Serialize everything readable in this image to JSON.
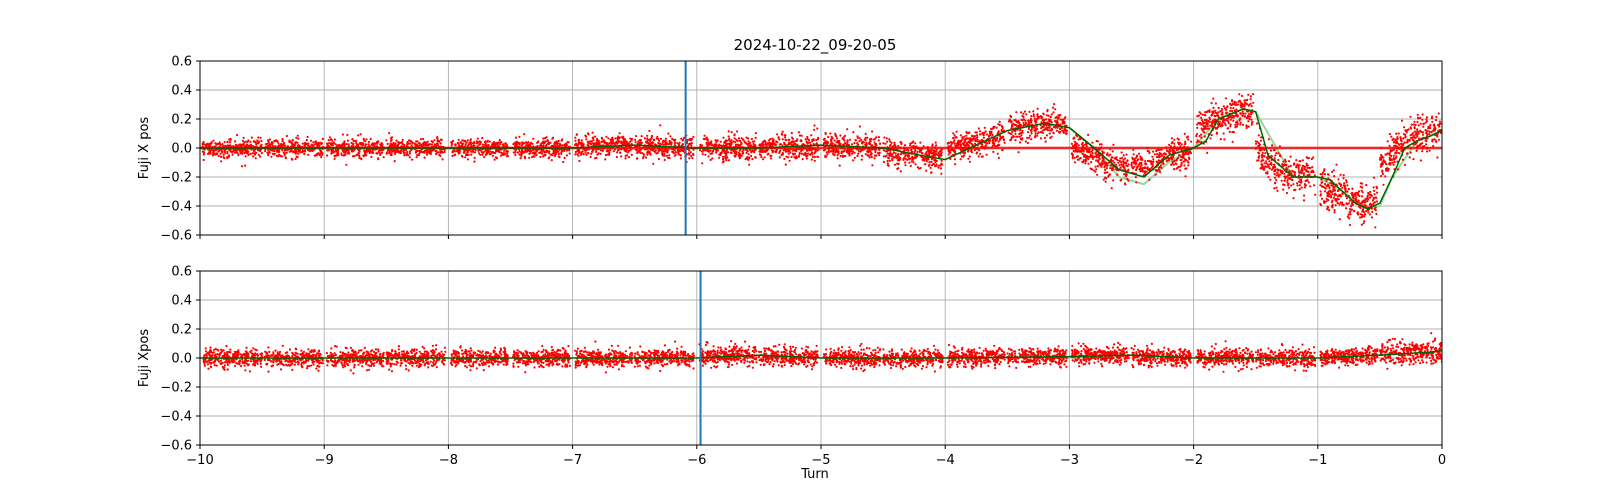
{
  "figure": {
    "title": "2024-10-22_09-20-05",
    "xlabel": "Turn"
  },
  "chart_data": [
    {
      "type": "scatter",
      "panel": "top",
      "title": "2024-10-22_09-20-05",
      "ylabel": "Fuji X pos",
      "xlabel": "",
      "xlim": [
        -10,
        0
      ],
      "ylim": [
        -0.6,
        0.6
      ],
      "xticks": [
        -10,
        -9,
        -8,
        -7,
        -6,
        -5,
        -4,
        -3,
        -2,
        -1,
        0
      ],
      "xtick_labels_shown": false,
      "yticks": [
        -0.6,
        -0.4,
        -0.2,
        0.0,
        0.2,
        0.4,
        0.6
      ],
      "grid": true,
      "colors": {
        "points": "#ff0000",
        "trend": "#006400",
        "envelope": "#98d898",
        "marker": "#1f77b4",
        "reference": "#ff0000"
      },
      "vertical_marker_x": -6.09,
      "reference_lines_y": [
        -0.005,
        0.005
      ],
      "series": [
        {
          "kind": "scatter",
          "color": "#ff0000",
          "segments": [
            {
              "x0": -9.98,
              "x1": -9.5,
              "n": 300,
              "center": 0.0,
              "noise": 0.03
            },
            {
              "x0": -9.48,
              "x1": -9.01,
              "n": 300,
              "center": 0.0,
              "noise": 0.03
            },
            {
              "x0": -8.98,
              "x1": -8.52,
              "n": 300,
              "center": 0.0,
              "noise": 0.03
            },
            {
              "x0": -8.5,
              "x1": -8.02,
              "n": 300,
              "center": 0.0,
              "noise": 0.03
            },
            {
              "x0": -7.98,
              "x1": -7.52,
              "n": 300,
              "center": 0.0,
              "noise": 0.03
            },
            {
              "x0": -7.48,
              "x1": -7.02,
              "n": 300,
              "center": 0.0,
              "noise": 0.03
            },
            {
              "x0": -6.98,
              "x1": -6.52,
              "n": 300,
              "center": 0.02,
              "noise": 0.035
            },
            {
              "x0": -6.5,
              "x1": -6.02,
              "n": 300,
              "center": 0.0,
              "noise": 0.04
            },
            {
              "x0": -5.98,
              "x1": -5.52,
              "n": 300,
              "center": 0.0,
              "noise": 0.04
            },
            {
              "x0": -5.5,
              "x1": -5.02,
              "n": 300,
              "center": 0.0,
              "noise": 0.045
            },
            {
              "x0": -4.98,
              "x1": -4.52,
              "n": 300,
              "center": 0.0,
              "noise": 0.04
            },
            {
              "x0": -4.5,
              "x1": -4.02,
              "n": 300,
              "center": -0.05,
              "noise": 0.045
            },
            {
              "x0": -3.98,
              "x1": -3.52,
              "n": 300,
              "center": 0.05,
              "noise": 0.045
            },
            {
              "x0": -3.5,
              "x1": -3.02,
              "n": 300,
              "center": 0.15,
              "noise": 0.05
            },
            {
              "x0": -2.98,
              "x1": -2.52,
              "n": 300,
              "center": -0.12,
              "noise": 0.05
            },
            {
              "x0": -2.5,
              "x1": -2.02,
              "n": 300,
              "center": -0.05,
              "noise": 0.05
            },
            {
              "x0": -1.98,
              "x1": -1.52,
              "n": 300,
              "center": 0.22,
              "noise": 0.06
            },
            {
              "x0": -1.5,
              "x1": -1.02,
              "n": 300,
              "center": -0.18,
              "noise": 0.06
            },
            {
              "x0": -0.98,
              "x1": -0.52,
              "n": 300,
              "center": -0.35,
              "noise": 0.07
            },
            {
              "x0": -0.5,
              "x1": 0.0,
              "n": 300,
              "center": 0.12,
              "noise": 0.06
            }
          ]
        },
        {
          "kind": "line",
          "role": "trend",
          "color": "#006400",
          "x": [
            -10,
            -9,
            -8,
            -7,
            -6.5,
            -6,
            -5.5,
            -5.0,
            -4.5,
            -4.2,
            -4.0,
            -3.8,
            -3.5,
            -3.2,
            -3.0,
            -2.8,
            -2.6,
            -2.4,
            -2.2,
            -2.0,
            -1.9,
            -1.8,
            -1.6,
            -1.5,
            -1.4,
            -1.2,
            -1.0,
            -0.9,
            -0.8,
            -0.7,
            -0.6,
            -0.5,
            -0.4,
            -0.3,
            -0.2,
            -0.1,
            0.0
          ],
          "y": [
            0.0,
            0.0,
            0.0,
            0.0,
            0.02,
            0.0,
            0.0,
            0.02,
            0.0,
            -0.05,
            -0.08,
            0.0,
            0.12,
            0.17,
            0.14,
            0.0,
            -0.15,
            -0.2,
            -0.05,
            0.0,
            0.05,
            0.2,
            0.27,
            0.25,
            -0.05,
            -0.2,
            -0.2,
            -0.22,
            -0.3,
            -0.38,
            -0.42,
            -0.38,
            -0.2,
            0.0,
            0.05,
            0.08,
            0.12
          ]
        },
        {
          "kind": "line",
          "role": "envelope",
          "color": "#98d898",
          "x": [
            -3.0,
            -2.8,
            -2.6,
            -2.4,
            -2.2,
            -2.0,
            -1.8,
            -1.6,
            -1.5,
            -1.4,
            -1.2,
            -1.0,
            -0.9,
            -0.8,
            -0.6,
            -0.5,
            -0.4,
            -0.2,
            0.0
          ],
          "y": [
            0.14,
            0.0,
            -0.2,
            -0.25,
            -0.1,
            0.0,
            0.2,
            0.27,
            0.25,
            0.1,
            -0.2,
            -0.2,
            -0.25,
            -0.3,
            -0.42,
            -0.4,
            -0.2,
            0.05,
            0.12
          ]
        }
      ]
    },
    {
      "type": "scatter",
      "panel": "bottom",
      "ylabel": "Fuji Xpos",
      "xlabel": "Turn",
      "xlim": [
        -10,
        0
      ],
      "ylim": [
        -0.6,
        0.6
      ],
      "xticks": [
        -10,
        -9,
        -8,
        -7,
        -6,
        -5,
        -4,
        -3,
        -2,
        -1,
        0
      ],
      "xtick_labels_shown": true,
      "yticks": [
        -0.6,
        -0.4,
        -0.2,
        0.0,
        0.2,
        0.4,
        0.6
      ],
      "grid": true,
      "colors": {
        "points": "#ff0000",
        "trend": "#006400",
        "marker": "#1f77b4"
      },
      "vertical_marker_x": -5.97,
      "series": [
        {
          "kind": "scatter",
          "color": "#ff0000",
          "segments": [
            {
              "x0": -9.98,
              "x1": -9.5,
              "n": 300,
              "center": 0.0,
              "noise": 0.03
            },
            {
              "x0": -9.48,
              "x1": -9.01,
              "n": 300,
              "center": 0.0,
              "noise": 0.03
            },
            {
              "x0": -8.98,
              "x1": -8.52,
              "n": 300,
              "center": 0.0,
              "noise": 0.03
            },
            {
              "x0": -8.5,
              "x1": -8.02,
              "n": 300,
              "center": 0.0,
              "noise": 0.03
            },
            {
              "x0": -7.98,
              "x1": -7.52,
              "n": 300,
              "center": 0.0,
              "noise": 0.03
            },
            {
              "x0": -7.48,
              "x1": -7.02,
              "n": 300,
              "center": 0.0,
              "noise": 0.03
            },
            {
              "x0": -6.98,
              "x1": -6.52,
              "n": 300,
              "center": 0.0,
              "noise": 0.03
            },
            {
              "x0": -6.5,
              "x1": -6.02,
              "n": 300,
              "center": 0.0,
              "noise": 0.03
            },
            {
              "x0": -5.98,
              "x1": -5.52,
              "n": 300,
              "center": 0.02,
              "noise": 0.03
            },
            {
              "x0": -5.5,
              "x1": -5.02,
              "n": 300,
              "center": 0.0,
              "noise": 0.03
            },
            {
              "x0": -4.98,
              "x1": -4.52,
              "n": 300,
              "center": 0.0,
              "noise": 0.03
            },
            {
              "x0": -4.5,
              "x1": -4.02,
              "n": 300,
              "center": 0.0,
              "noise": 0.03
            },
            {
              "x0": -3.98,
              "x1": -3.52,
              "n": 300,
              "center": 0.01,
              "noise": 0.03
            },
            {
              "x0": -3.5,
              "x1": -3.02,
              "n": 300,
              "center": 0.01,
              "noise": 0.03
            },
            {
              "x0": -2.98,
              "x1": -2.52,
              "n": 300,
              "center": 0.02,
              "noise": 0.03
            },
            {
              "x0": -2.5,
              "x1": -2.02,
              "n": 300,
              "center": 0.0,
              "noise": 0.03
            },
            {
              "x0": -1.98,
              "x1": -1.52,
              "n": 300,
              "center": 0.0,
              "noise": 0.03
            },
            {
              "x0": -1.5,
              "x1": -1.02,
              "n": 300,
              "center": 0.0,
              "noise": 0.03
            },
            {
              "x0": -0.98,
              "x1": -0.52,
              "n": 300,
              "center": 0.01,
              "noise": 0.03
            },
            {
              "x0": -0.5,
              "x1": 0.0,
              "n": 300,
              "center": 0.04,
              "noise": 0.04
            }
          ]
        },
        {
          "kind": "line",
          "role": "trend",
          "color": "#006400",
          "x": [
            -10,
            -9,
            -8,
            -7,
            -6,
            -5.5,
            -5,
            -4,
            -3,
            -2.5,
            -2,
            -1.5,
            -1,
            -0.5,
            -0.3,
            -0.1,
            0.0
          ],
          "y": [
            0.0,
            0.0,
            0.0,
            0.0,
            0.0,
            0.02,
            0.0,
            0.0,
            0.01,
            0.02,
            0.0,
            0.0,
            0.0,
            0.02,
            0.03,
            0.04,
            0.05
          ]
        }
      ]
    }
  ]
}
